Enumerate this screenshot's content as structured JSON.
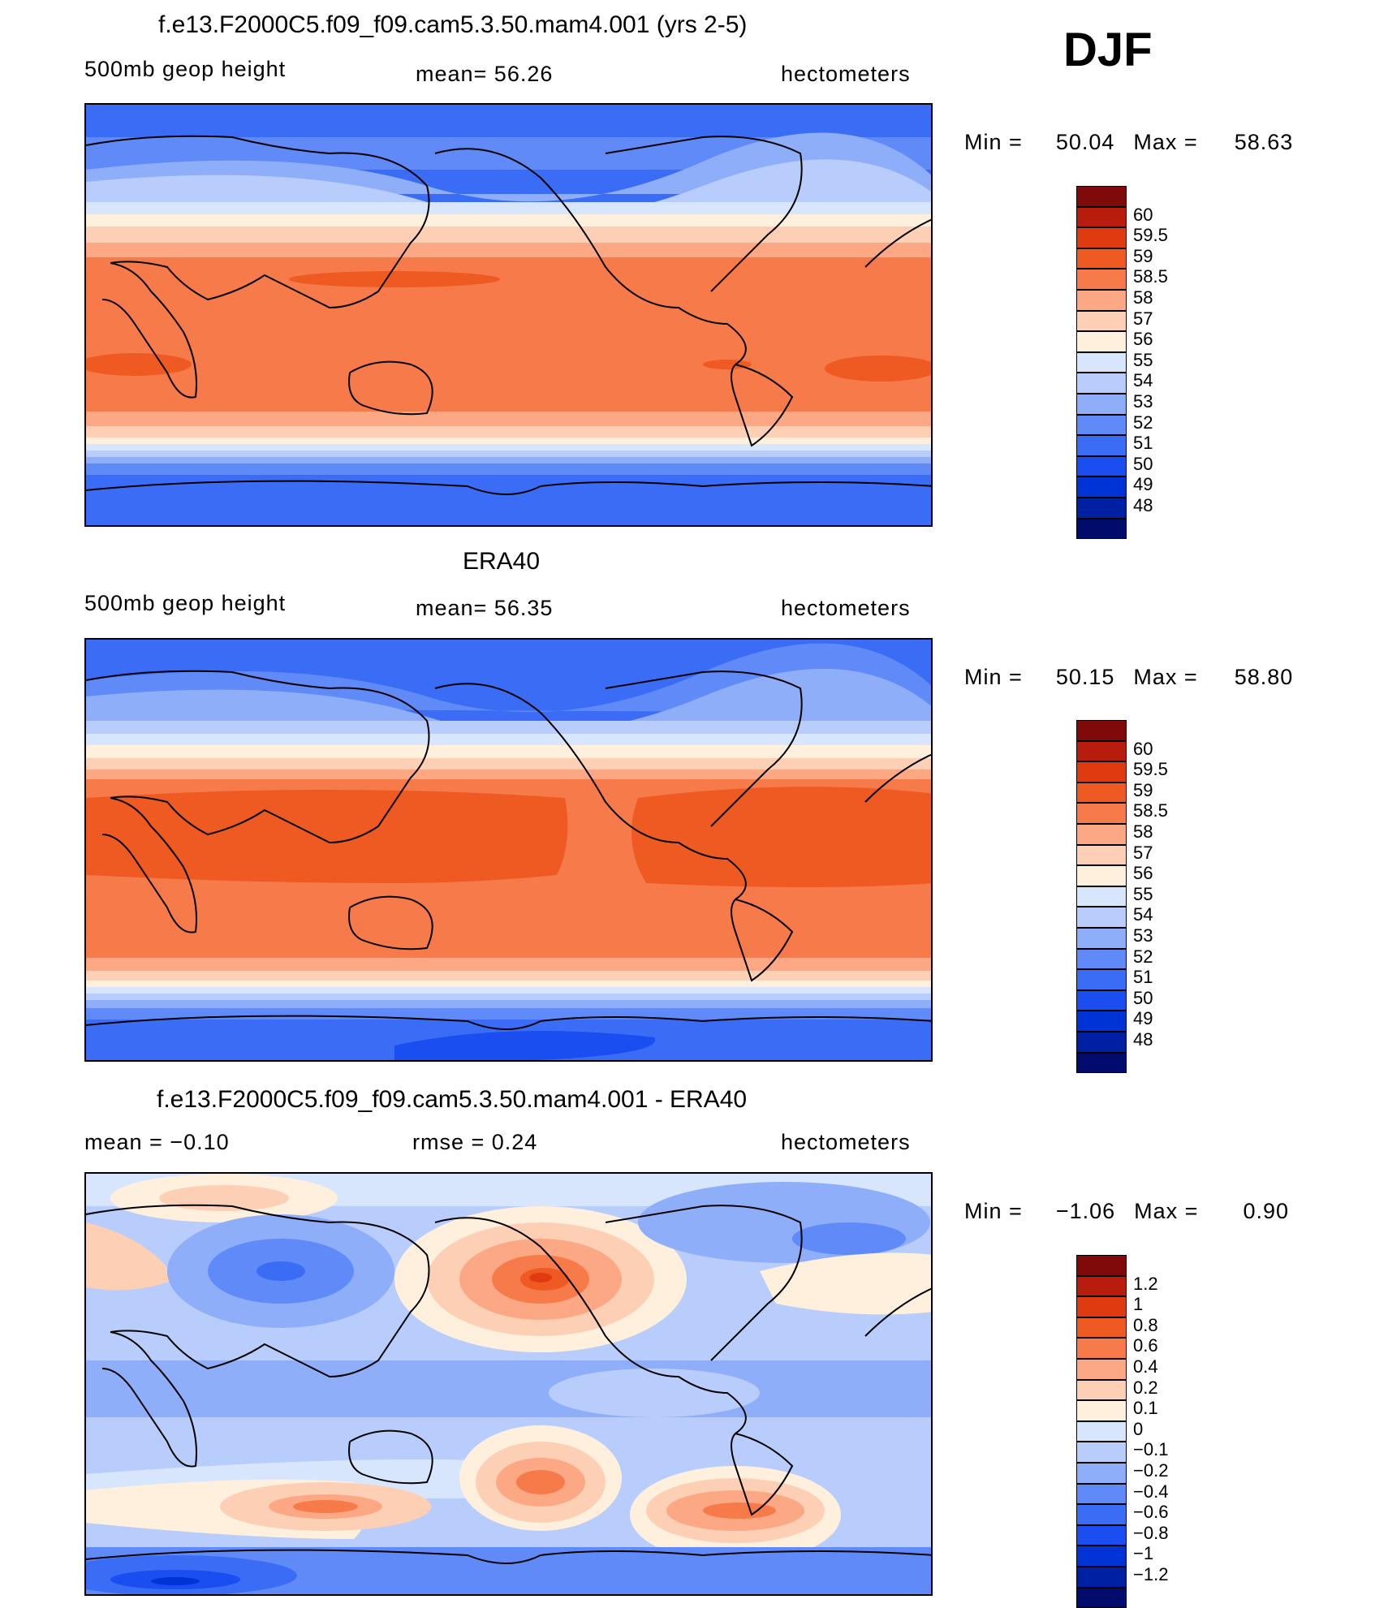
{
  "season": "DJF",
  "panels": [
    {
      "title": "f.e13.F2000C5.f09_f09.cam5.3.50.mam4.001 (yrs 2-5)",
      "left_label": "500mb  geop  height",
      "center_label": "mean=   56.26",
      "units": "hectometers",
      "min_label": "Min  =",
      "min_value": "50.04",
      "max_label": "Max  =",
      "max_value": "58.63",
      "colorbar": {
        "colors": [
          "#000b6b",
          "#0020a4",
          "#0033d5",
          "#1a4ef0",
          "#3a6cf5",
          "#5f8af7",
          "#8eaefa",
          "#b9cdfc",
          "#d8e6fd",
          "#fff0de",
          "#fdd0b6",
          "#fca885",
          "#f77a4a",
          "#ef5a22",
          "#e03a10",
          "#b81c0c",
          "#7e0a0a"
        ],
        "labels": [
          "48",
          "49",
          "50",
          "51",
          "52",
          "53",
          "54",
          "55",
          "56",
          "57",
          "58",
          "58.5",
          "59",
          "59.5",
          "60"
        ]
      }
    },
    {
      "title": "ERA40",
      "left_label": "500mb  geop  height",
      "center_label": "mean=   56.35",
      "units": "hectometers",
      "min_label": "Min  =",
      "min_value": "50.15",
      "max_label": "Max  =",
      "max_value": "58.80",
      "colorbar": {
        "colors": [
          "#000b6b",
          "#0020a4",
          "#0033d5",
          "#1a4ef0",
          "#3a6cf5",
          "#5f8af7",
          "#8eaefa",
          "#b9cdfc",
          "#d8e6fd",
          "#fff0de",
          "#fdd0b6",
          "#fca885",
          "#f77a4a",
          "#ef5a22",
          "#e03a10",
          "#b81c0c",
          "#7e0a0a"
        ],
        "labels": [
          "48",
          "49",
          "50",
          "51",
          "52",
          "53",
          "54",
          "55",
          "56",
          "57",
          "58",
          "58.5",
          "59",
          "59.5",
          "60"
        ]
      }
    },
    {
      "title": "f.e13.F2000C5.f09_f09.cam5.3.50.mam4.001 - ERA40",
      "left_label": "mean  =    −0.10",
      "center_label": "rmse  =     0.24",
      "units": "hectometers",
      "min_label": "Min  =",
      "min_value": "−1.06",
      "max_label": "Max  =",
      "max_value": "0.90",
      "colorbar": {
        "colors": [
          "#000b6b",
          "#0020a4",
          "#0033d5",
          "#1a4ef0",
          "#3a6cf5",
          "#5f8af7",
          "#8eaefa",
          "#b9cdfc",
          "#d8e6fd",
          "#fff0de",
          "#fdd0b6",
          "#fca885",
          "#f77a4a",
          "#ef5a22",
          "#e03a10",
          "#b81c0c",
          "#7e0a0a"
        ],
        "labels": [
          "−1.2",
          "−1",
          "−0.8",
          "−0.6",
          "−0.4",
          "−0.2",
          "−0.1",
          "0",
          "0.1",
          "0.2",
          "0.4",
          "0.6",
          "0.8",
          "1",
          "1.2"
        ]
      }
    }
  ]
}
